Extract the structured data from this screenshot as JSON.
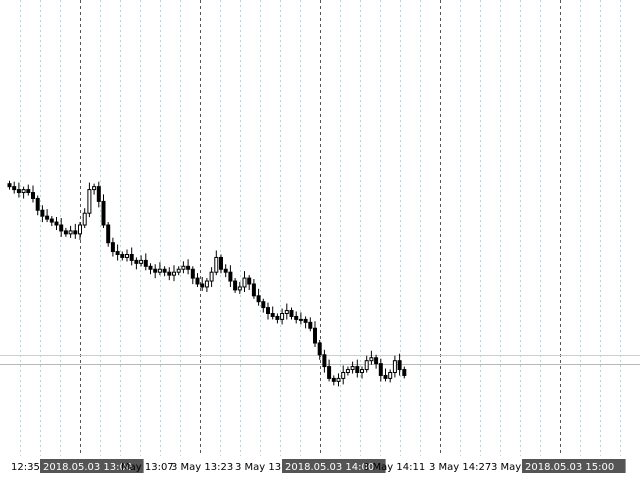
{
  "chart_data": {
    "type": "candlestick",
    "title": "",
    "grid": true,
    "price_range_units": [
      0,
      1
    ],
    "current_price_line": 0.095,
    "x_tick_labels": [
      {
        "label": "12:35",
        "highlighted": false
      },
      {
        "label": "2018.05.03 13:00",
        "highlighted": true
      },
      {
        "label": "May 13:07",
        "highlighted": false
      },
      {
        "label": "3 May 13:23",
        "highlighted": false
      },
      {
        "label": "3 May 13:",
        "highlighted": false
      },
      {
        "label": "2018.05.03 14:00",
        "highlighted": true
      },
      {
        "label": "3 May 14:11",
        "highlighted": false
      },
      {
        "label": "3 May 14:27",
        "highlighted": false
      },
      {
        "label": "3 May",
        "highlighted": false
      },
      {
        "label": "2018.05.03 15:00",
        "highlighted": true
      }
    ],
    "candles_close_profile": [
      0.565,
      0.56,
      0.555,
      0.56,
      0.555,
      0.545,
      0.525,
      0.515,
      0.51,
      0.505,
      0.5,
      0.49,
      0.485,
      0.49,
      0.485,
      0.5,
      0.52,
      0.56,
      0.565,
      0.54,
      0.5,
      0.47,
      0.455,
      0.45,
      0.445,
      0.45,
      0.44,
      0.435,
      0.44,
      0.43,
      0.425,
      0.42,
      0.425,
      0.42,
      0.415,
      0.42,
      0.425,
      0.43,
      0.425,
      0.41,
      0.4,
      0.395,
      0.405,
      0.42,
      0.445,
      0.425,
      0.42,
      0.405,
      0.39,
      0.395,
      0.41,
      0.4,
      0.38,
      0.37,
      0.36,
      0.35,
      0.345,
      0.34,
      0.35,
      0.355,
      0.345,
      0.34,
      0.34,
      0.335,
      0.325,
      0.3,
      0.28,
      0.26,
      0.24,
      0.235,
      0.24,
      0.25,
      0.255,
      0.26,
      0.25,
      0.255,
      0.27,
      0.275,
      0.265,
      0.245,
      0.24,
      0.25,
      0.27,
      0.255,
      0.245
    ]
  }
}
